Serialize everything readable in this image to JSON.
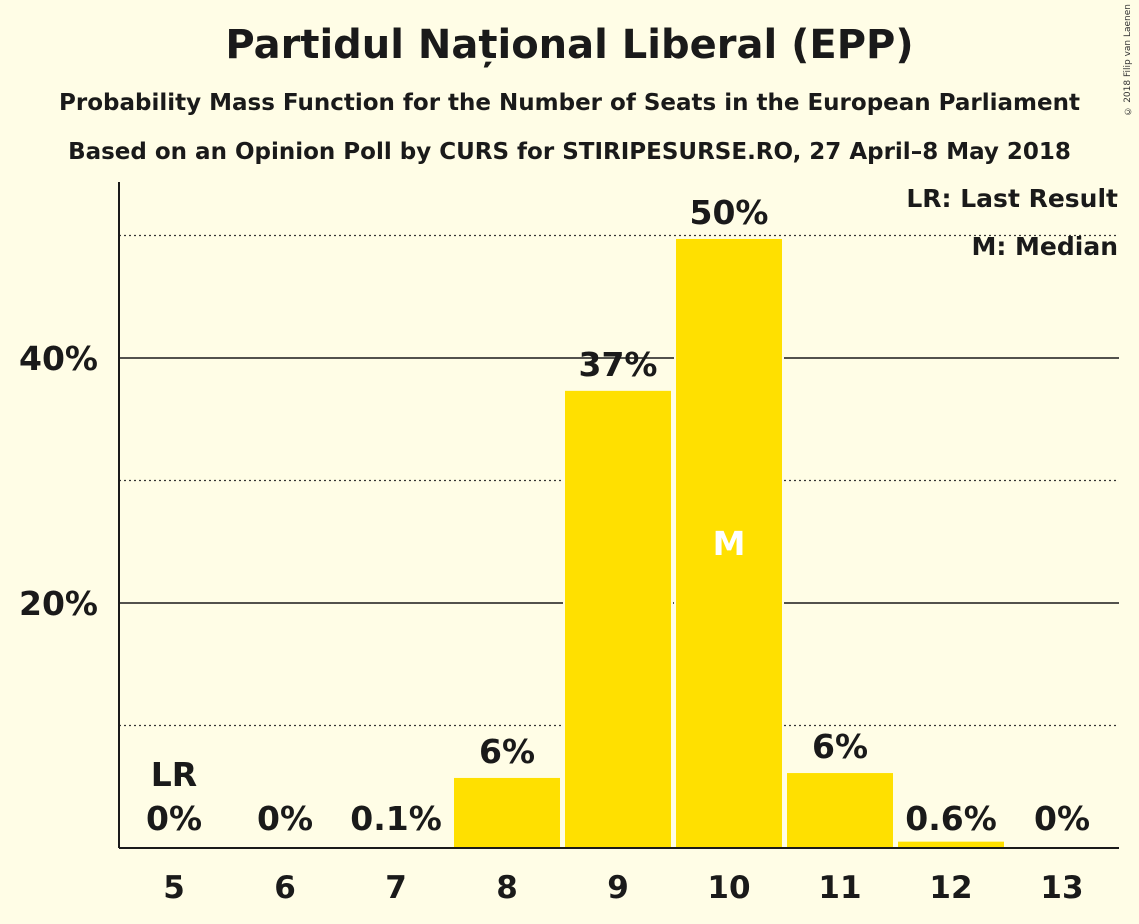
{
  "title": "Partidul Național Liberal (EPP)",
  "subtitle": "Probability Mass Function for the Number of Seats in the European Parliament",
  "subtitle2": "Based on an Opinion Poll by CURS for STIRIPESURSE.RO, 27 April–8 May 2018",
  "copyright": "© 2018 Filip van Laenen",
  "legend": {
    "last_result": "LR: Last Result",
    "median": "M: Median"
  },
  "colors": {
    "background": "#fffde6",
    "bar": "#ffe000",
    "median_marker": "#ffffff",
    "text": "#1a1a1a"
  },
  "chart_data": {
    "type": "bar",
    "categories": [
      "5",
      "6",
      "7",
      "8",
      "9",
      "10",
      "11",
      "12",
      "13"
    ],
    "values": [
      0,
      0,
      0.1,
      5.8,
      37.4,
      49.8,
      6.2,
      0.6,
      0
    ],
    "data_labels": [
      "0%",
      "0%",
      "0.1%",
      "6%",
      "37%",
      "50%",
      "6%",
      "0.6%",
      "0%"
    ],
    "ylim": [
      0,
      54
    ],
    "y_ticks": [
      {
        "value": 20,
        "label": "20%",
        "style": "solid"
      },
      {
        "value": 40,
        "label": "40%",
        "style": "solid"
      }
    ],
    "y_minor_gridlines": [
      10,
      30,
      50
    ],
    "last_result_category": "5",
    "last_result_marker": "LR",
    "median_category": "10",
    "median_marker": "M",
    "grid": true,
    "legend_position": "top-right"
  }
}
